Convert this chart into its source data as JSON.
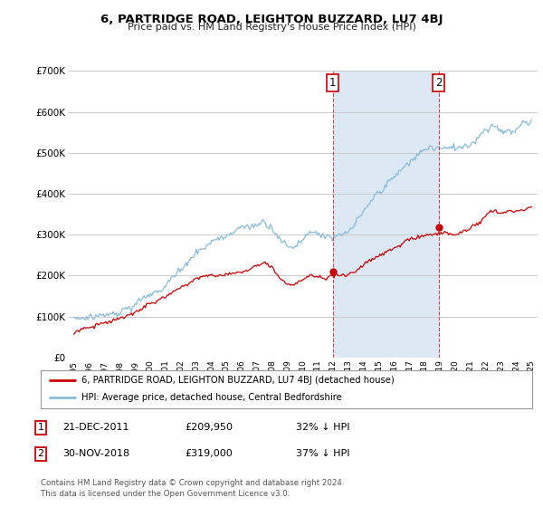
{
  "title": "6, PARTRIDGE ROAD, LEIGHTON BUZZARD, LU7 4BJ",
  "subtitle": "Price paid vs. HM Land Registry's House Price Index (HPI)",
  "ylim": [
    0,
    700000
  ],
  "yticks": [
    0,
    100000,
    200000,
    300000,
    400000,
    500000,
    600000,
    700000
  ],
  "ytick_labels": [
    "£0",
    "£100K",
    "£200K",
    "£300K",
    "£400K",
    "£500K",
    "£600K",
    "£700K"
  ],
  "hpi_color": "#88bbdd",
  "price_color": "#cc0000",
  "marker_color": "#cc0000",
  "purchase1": {
    "date": "21-DEC-2011",
    "price": 209950,
    "label": "1",
    "year": 2011.97
  },
  "purchase2": {
    "date": "30-NOV-2018",
    "price": 319000,
    "label": "2",
    "year": 2018.91
  },
  "legend_line1": "6, PARTRIDGE ROAD, LEIGHTON BUZZARD, LU7 4BJ (detached house)",
  "legend_line2": "HPI: Average price, detached house, Central Bedfordshire",
  "footnote": "Contains HM Land Registry data © Crown copyright and database right 2024.\nThis data is licensed under the Open Government Licence v3.0.",
  "background_color": "#ffffff",
  "plot_bg_color": "#ffffff",
  "grid_color": "#cccccc",
  "shade_color": "#dde8f5"
}
